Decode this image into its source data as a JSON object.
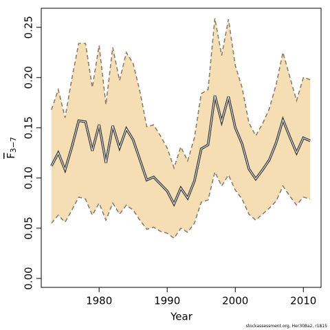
{
  "chart_data": {
    "type": "line",
    "xlabel": "Year",
    "ylabel": "F",
    "ylabel_subscript": "3−7",
    "footer": "stockassessment.org, Her30Ba2, r1815",
    "x": [
      1973,
      1974,
      1975,
      1976,
      1977,
      1978,
      1979,
      1980,
      1981,
      1982,
      1983,
      1984,
      1985,
      1986,
      1987,
      1988,
      1989,
      1990,
      1991,
      1992,
      1993,
      1994,
      1995,
      1996,
      1997,
      1998,
      1999,
      2000,
      2001,
      2002,
      2003,
      2004,
      2005,
      2006,
      2007,
      2008,
      2009,
      2010,
      2011
    ],
    "series": [
      {
        "values": [
          0.112,
          0.125,
          0.108,
          0.131,
          0.157,
          0.156,
          0.127,
          0.153,
          0.115,
          0.152,
          0.13,
          0.149,
          0.138,
          0.118,
          0.098,
          0.101,
          0.094,
          0.087,
          0.074,
          0.09,
          0.08,
          0.097,
          0.129,
          0.133,
          0.182,
          0.156,
          0.181,
          0.15,
          0.134,
          0.109,
          0.099,
          0.108,
          0.118,
          0.135,
          0.158,
          0.141,
          0.125,
          0.14,
          0.137
        ],
        "color": "#333333"
      },
      {
        "values": [
          0.168,
          0.188,
          0.16,
          0.199,
          0.234,
          0.234,
          0.19,
          0.232,
          0.173,
          0.23,
          0.197,
          0.225,
          0.214,
          0.186,
          0.151,
          0.153,
          0.142,
          0.13,
          0.11,
          0.131,
          0.117,
          0.14,
          0.184,
          0.188,
          0.259,
          0.222,
          0.258,
          0.212,
          0.19,
          0.155,
          0.142,
          0.154,
          0.169,
          0.193,
          0.225,
          0.201,
          0.177,
          0.2,
          0.198
        ],
        "color": "#8b7d6b"
      },
      {
        "values": [
          0.055,
          0.063,
          0.056,
          0.068,
          0.081,
          0.079,
          0.063,
          0.075,
          0.058,
          0.075,
          0.064,
          0.073,
          0.068,
          0.058,
          0.049,
          0.051,
          0.047,
          0.045,
          0.04,
          0.05,
          0.046,
          0.055,
          0.076,
          0.078,
          0.106,
          0.092,
          0.103,
          0.088,
          0.079,
          0.064,
          0.058,
          0.064,
          0.07,
          0.077,
          0.092,
          0.082,
          0.073,
          0.081,
          0.079
        ],
        "color": "#8b7d6b"
      }
    ],
    "band_color": "#f5deb3",
    "xlim": [
      1971.5,
      2012.6
    ],
    "ylim": [
      -0.0089,
      0.269
    ],
    "xticks": [
      1980,
      1990,
      2000,
      2010
    ],
    "yticks": [
      {
        "value": 0,
        "label": "0.00"
      },
      {
        "value": 0.05,
        "label": "0.05"
      },
      {
        "value": 0.1,
        "label": "0.10"
      },
      {
        "value": 0.15,
        "label": "0.15"
      },
      {
        "value": 0.2,
        "label": "0.20"
      },
      {
        "value": 0.25,
        "label": "0.25"
      }
    ]
  }
}
